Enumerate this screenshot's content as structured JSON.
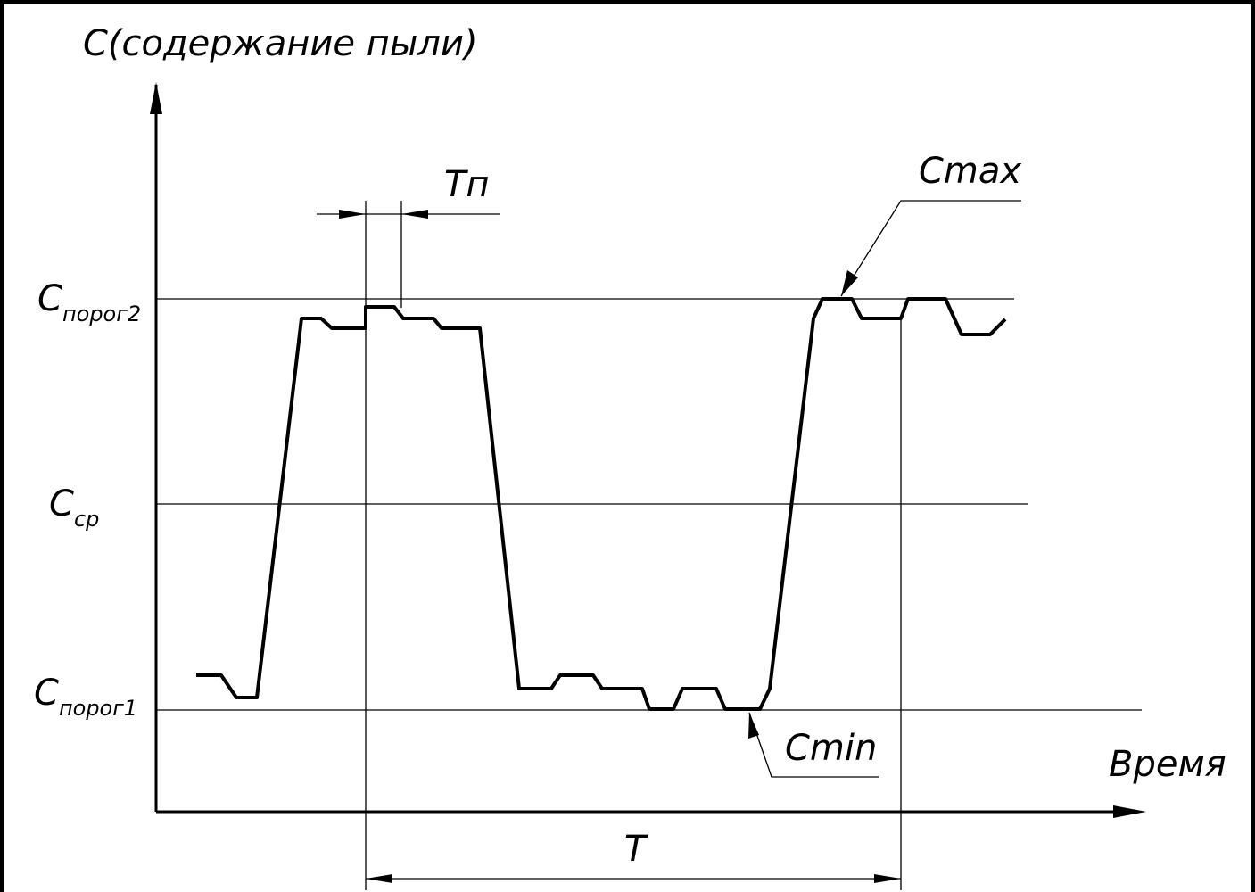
{
  "labels": {
    "y_axis": "C(содержание пыли)",
    "x_axis": "Время",
    "threshold2": {
      "base": "C",
      "sub": "порог2"
    },
    "average": {
      "base": "C",
      "sub": "ср"
    },
    "threshold1": {
      "base": "C",
      "sub": "порог1"
    },
    "pulse_duration": "Tп",
    "period": "T",
    "c_max": "Cmax",
    "c_min": "Cmin"
  },
  "colors": {
    "line": "#000000",
    "background": "#ffffff"
  }
}
